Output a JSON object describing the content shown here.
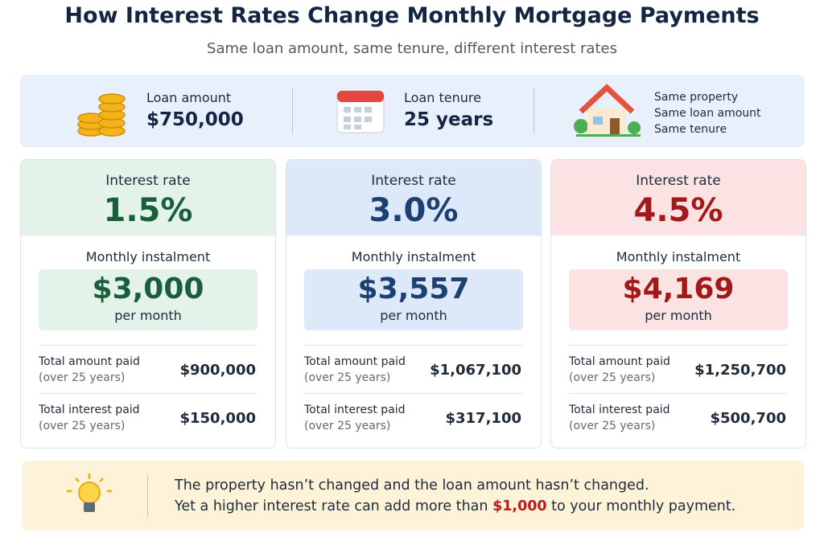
{
  "header": {
    "title": "How Interest Rates Change Monthly Mortgage Payments",
    "subtitle": "Same loan amount, same tenure, different interest rates"
  },
  "summary": {
    "loan_label": "Loan amount",
    "loan_value": "$750,000",
    "tenure_label": "Loan tenure",
    "tenure_value": "25 years",
    "notes": [
      "Same property",
      "Same loan amount",
      "Same tenure"
    ]
  },
  "cards": [
    {
      "rate_label": "Interest rate",
      "rate": "1.5%",
      "instalment_label": "Monthly instalment",
      "instalment": "$3,000",
      "per": "per month",
      "rows": [
        {
          "label": "Total amount paid",
          "sub": "(over 25 years)",
          "value": "$900,000"
        },
        {
          "label": "Total interest paid",
          "sub": "(over 25 years)",
          "value": "$150,000"
        }
      ]
    },
    {
      "rate_label": "Interest rate",
      "rate": "3.0%",
      "instalment_label": "Monthly instalment",
      "instalment": "$3,557",
      "per": "per month",
      "rows": [
        {
          "label": "Total amount paid",
          "sub": "(over 25 years)",
          "value": "$1,067,100"
        },
        {
          "label": "Total interest paid",
          "sub": "(over 25 years)",
          "value": "$317,100"
        }
      ]
    },
    {
      "rate_label": "Interest rate",
      "rate": "4.5%",
      "instalment_label": "Monthly instalment",
      "instalment": "$4,169",
      "per": "per month",
      "rows": [
        {
          "label": "Total amount paid",
          "sub": "(over 25 years)",
          "value": "$1,250,700"
        },
        {
          "label": "Total interest paid",
          "sub": "(over 25 years)",
          "value": "$500,700"
        }
      ]
    }
  ],
  "footer": {
    "line1": "The property hasn’t changed and the loan amount hasn’t changed.",
    "line2_before": "Yet a higher interest rate can add more than ",
    "highlight": "$1,000",
    "line2_after": " to your monthly payment."
  }
}
